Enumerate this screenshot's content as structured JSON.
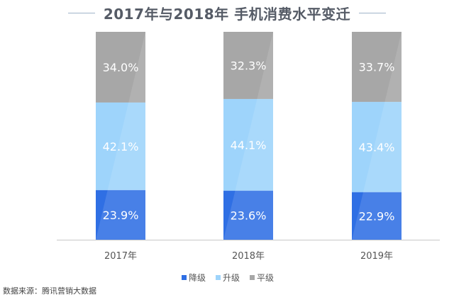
{
  "chart_data": {
    "type": "bar",
    "stacked": true,
    "title": "2017年与2018年 手机消费水平变迁",
    "categories": [
      "2017年",
      "2018年",
      "2019年"
    ],
    "series": [
      {
        "name": "降级",
        "color": "#2f6fe4",
        "values": [
          23.9,
          23.6,
          22.9
        ],
        "labels": [
          "23.9%",
          "23.6%",
          "22.9%"
        ]
      },
      {
        "name": "升级",
        "color": "#9ed4fb",
        "values": [
          42.1,
          44.1,
          43.4
        ],
        "labels": [
          "42.1%",
          "44.1%",
          "43.4%"
        ]
      },
      {
        "name": "平级",
        "color": "#a7a7a7",
        "values": [
          34.0,
          32.3,
          33.7
        ],
        "labels": [
          "34.0%",
          "32.3%",
          "33.7%"
        ]
      }
    ],
    "ylim": [
      0,
      100
    ],
    "grid": false,
    "legend_position": "bottom-center"
  },
  "source": "数据来源：腾讯营销大数据"
}
